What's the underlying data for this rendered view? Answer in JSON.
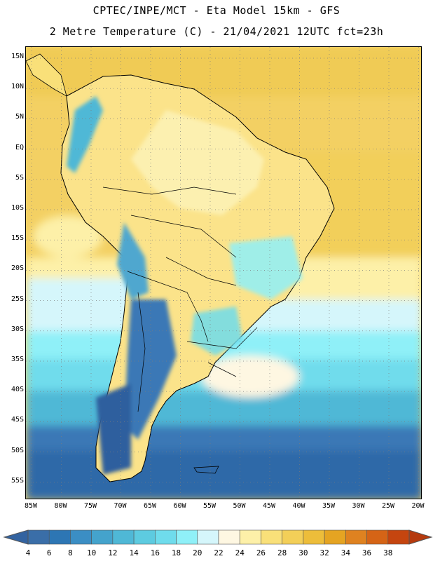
{
  "header": {
    "line1": "CPTEC/INPE/MCT -  Eta Model 15km - GFS",
    "line2": "2 Metre Temperature (C) - 21/04/2021 12UTC fct=23h"
  },
  "map": {
    "lat_labels": [
      "15N",
      "10N",
      "5N",
      "EQ",
      "5S",
      "10S",
      "15S",
      "20S",
      "25S",
      "30S",
      "35S",
      "40S",
      "45S",
      "50S",
      "55S"
    ],
    "lon_labels": [
      "85W",
      "80W",
      "75W",
      "70W",
      "65W",
      "60W",
      "55W",
      "50W",
      "45W",
      "40W",
      "35W",
      "30W",
      "25W",
      "20W"
    ],
    "grid_lines": true
  },
  "colorbar": {
    "labels": [
      "4",
      "6",
      "8",
      "10",
      "12",
      "14",
      "16",
      "18",
      "20",
      "22",
      "24",
      "26",
      "28",
      "30",
      "32",
      "34",
      "36",
      "38"
    ],
    "colors": [
      "#3a6ea8",
      "#2d76b4",
      "#3b8ec4",
      "#44a3cc",
      "#4fb8d6",
      "#5dcbe0",
      "#6fdcec",
      "#8ff0f8",
      "#d5f6fb",
      "#fef7e2",
      "#fdf0a8",
      "#f9e079",
      "#f3cf58",
      "#edbd3a",
      "#e5a422",
      "#df8220",
      "#d56416",
      "#c5450f"
    ],
    "end_left": "#3363a0",
    "end_right": "#b53a0e"
  }
}
